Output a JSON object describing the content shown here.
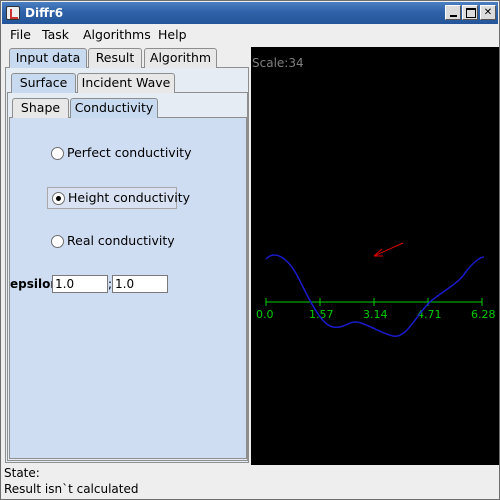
{
  "window": {
    "title": "Diffr6"
  },
  "menu": [
    "File",
    "Task",
    "Algorithms",
    "Help"
  ],
  "tabs": {
    "top": [
      "Input data",
      "Result",
      "Algorithm"
    ],
    "second": [
      "Surface",
      "Incident Wave"
    ],
    "third": [
      "Shape",
      "Conductivity"
    ]
  },
  "conductivity": {
    "options": [
      "Perfect conductivity",
      "Height conductivity",
      "Real conductivity"
    ],
    "selected": "Height conductivity",
    "epsilon_label": "epsilon",
    "epsilon_real": "1.0",
    "epsilon_imag": "1.0",
    "separator": ";"
  },
  "graph": {
    "scale_text": "Scale:34",
    "axis_ticks": [
      "0.0",
      "1.57",
      "3.14",
      "4.71",
      "6.28"
    ],
    "colors": {
      "background": "#000000",
      "axis": "#00cc00",
      "curve": "#1a1acc",
      "arrow": "#dd0000",
      "scale": "#7f7f7f"
    }
  },
  "status": {
    "label": "State:",
    "text": "Result isn`t calculated"
  }
}
